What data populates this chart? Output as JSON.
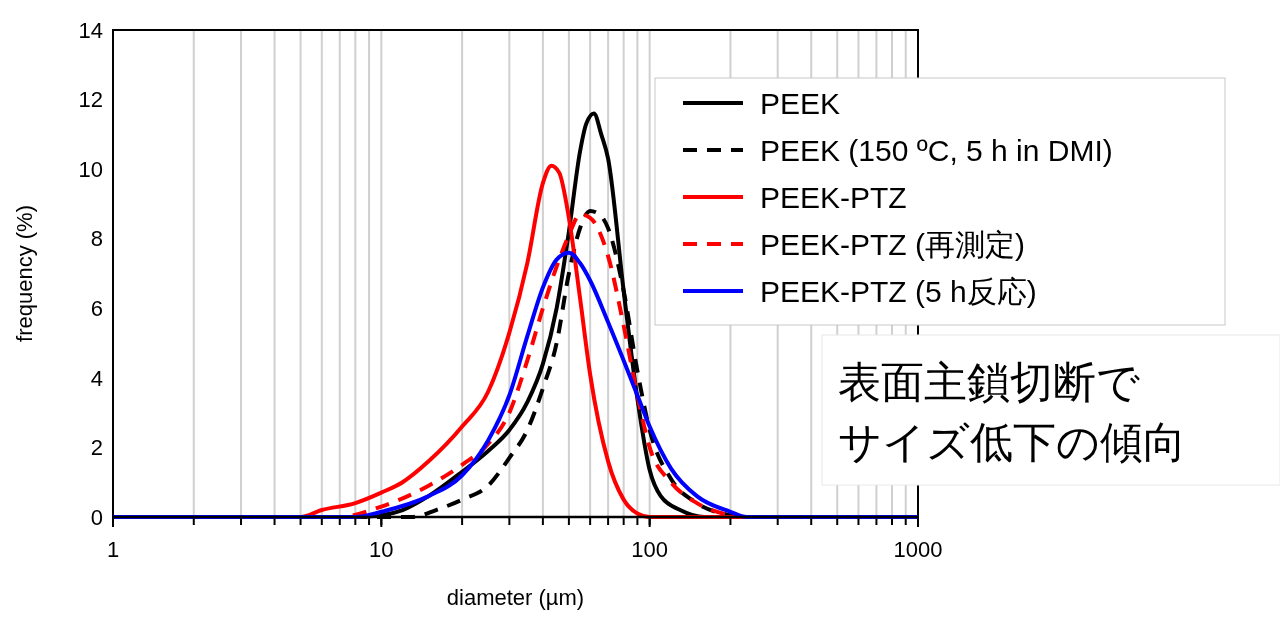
{
  "chart_data": {
    "type": "line",
    "xlabel": "diameter (µm)",
    "ylabel": "frequency (%)",
    "log": "x",
    "xlim": [
      1,
      1000
    ],
    "xticks": [
      1,
      10,
      100,
      1000
    ],
    "ylim": [
      0,
      14
    ],
    "yticks": [
      0,
      2,
      4,
      6,
      8,
      10,
      12,
      14
    ],
    "grid": "x",
    "legend": "top right",
    "annotations": [
      "表面主鎖切断で",
      "サイズ低下の傾向"
    ],
    "series": [
      {
        "name": "PEEK",
        "color": "#000000",
        "line_style": "solid",
        "x": [
          1,
          8,
          10,
          12,
          15,
          20,
          25,
          30,
          35,
          40,
          45,
          50,
          55,
          58,
          62,
          66,
          70,
          80,
          90,
          100,
          110,
          130,
          160,
          1000
        ],
        "values": [
          0,
          0,
          0.05,
          0.2,
          0.6,
          1.3,
          1.9,
          2.5,
          3.3,
          4.4,
          6.0,
          8.2,
          10.5,
          11.3,
          11.6,
          11.0,
          10.3,
          6.5,
          3.4,
          1.35,
          0.6,
          0.2,
          0,
          0
        ]
      },
      {
        "name": "PEEK (150 ºC, 5 h in DMI)",
        "color": "#000000",
        "line_style": "dashed",
        "x": [
          1,
          13,
          16,
          20,
          25,
          30,
          35,
          40,
          45,
          50,
          55,
          60,
          65,
          70,
          80,
          90,
          100,
          120,
          150,
          200,
          220,
          1000
        ],
        "values": [
          0,
          0,
          0.2,
          0.5,
          0.9,
          1.7,
          2.5,
          3.7,
          5.0,
          7.0,
          8.3,
          8.8,
          8.7,
          8.3,
          6.5,
          4.2,
          2.5,
          1.1,
          0.4,
          0.05,
          0,
          0
        ]
      },
      {
        "name": "PEEK-PTZ",
        "color": "#ff0000",
        "line_style": "solid",
        "x": [
          1,
          5,
          6,
          8,
          10,
          12,
          15,
          20,
          25,
          30,
          35,
          40,
          43,
          46,
          50,
          55,
          60,
          70,
          80,
          90,
          100,
          1000
        ],
        "values": [
          0,
          0,
          0.2,
          0.4,
          0.7,
          1.0,
          1.6,
          2.6,
          3.6,
          5.3,
          7.3,
          9.6,
          10.1,
          9.9,
          8.6,
          6.3,
          4.1,
          1.6,
          0.5,
          0.1,
          0,
          0
        ]
      },
      {
        "name": "PEEK-PTZ (再測定)",
        "color": "#ff0000",
        "line_style": "dashed",
        "x": [
          1,
          7,
          10,
          15,
          20,
          25,
          30,
          35,
          40,
          45,
          50,
          55,
          60,
          70,
          80,
          90,
          100,
          120,
          150,
          200,
          220,
          1000
        ],
        "values": [
          0,
          0,
          0.3,
          0.9,
          1.5,
          2.1,
          3.0,
          4.5,
          6.0,
          7.2,
          8.1,
          8.7,
          8.6,
          7.5,
          5.5,
          3.5,
          2.0,
          1.0,
          0.4,
          0.05,
          0,
          0
        ]
      },
      {
        "name": "PEEK-PTZ (5 h反応)",
        "color": "#0000ff",
        "line_style": "solid",
        "x": [
          1,
          8,
          10,
          15,
          20,
          25,
          30,
          35,
          40,
          45,
          50,
          55,
          60,
          70,
          80,
          90,
          100,
          120,
          150,
          200,
          230,
          1000
        ],
        "values": [
          0,
          0,
          0.15,
          0.6,
          1.2,
          2.2,
          3.5,
          5.2,
          6.6,
          7.4,
          7.6,
          7.3,
          6.8,
          5.6,
          4.5,
          3.5,
          2.6,
          1.4,
          0.6,
          0.15,
          0,
          0
        ]
      }
    ]
  }
}
